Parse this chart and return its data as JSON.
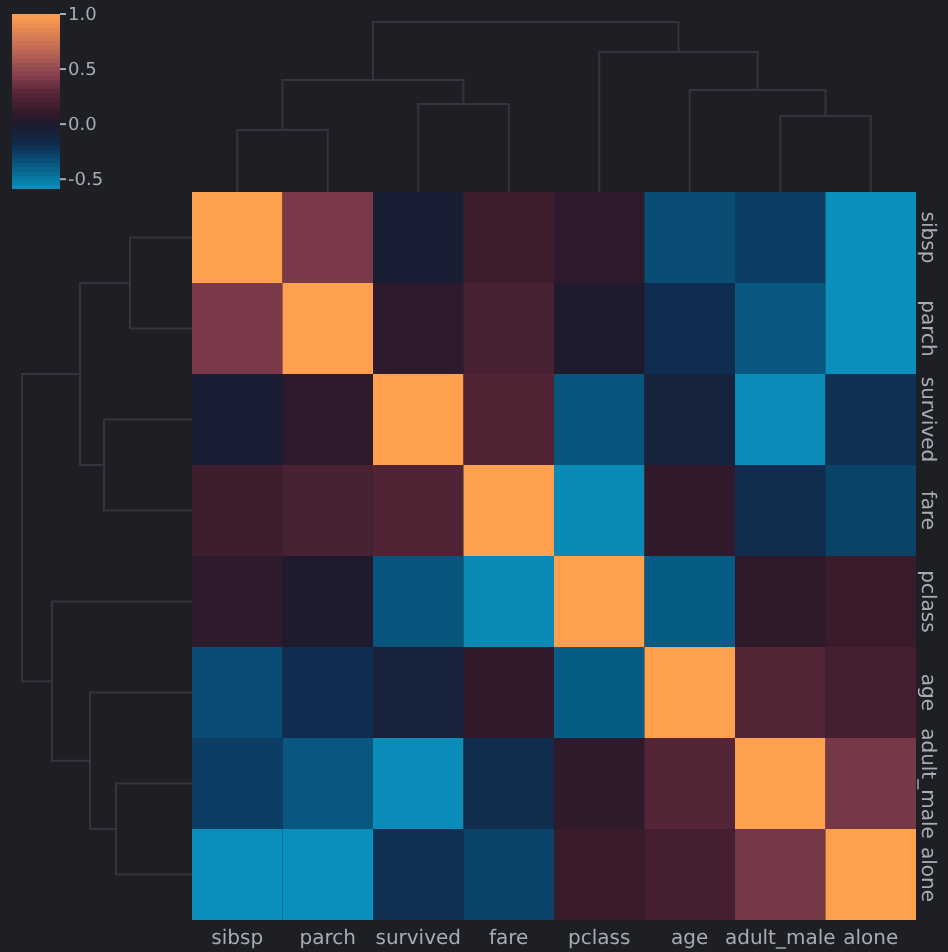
{
  "chart_data": {
    "type": "heatmap",
    "categories": [
      "sibsp",
      "parch",
      "survived",
      "fare",
      "pclass",
      "age",
      "adult_male",
      "alone"
    ],
    "y_categories": [
      "sibsp",
      "parch",
      "survived",
      "fare",
      "pclass",
      "age",
      "adult_male",
      "alone"
    ],
    "cells": [
      [
        1,
        0.41,
        -0.04,
        0.16,
        0.08,
        -0.31,
        -0.25,
        -0.58
      ],
      [
        0.41,
        1,
        0.08,
        0.22,
        0.02,
        -0.19,
        -0.35,
        -0.58
      ],
      [
        -0.04,
        0.08,
        1,
        0.26,
        -0.34,
        -0.08,
        -0.56,
        -0.2
      ],
      [
        0.16,
        0.22,
        0.26,
        1,
        -0.55,
        0.1,
        -0.18,
        -0.27
      ],
      [
        0.08,
        0.02,
        -0.34,
        -0.55,
        1,
        -0.37,
        0.09,
        0.14
      ],
      [
        -0.31,
        -0.19,
        -0.08,
        0.1,
        -0.37,
        1,
        0.28,
        0.2
      ],
      [
        -0.25,
        -0.35,
        -0.56,
        -0.18,
        0.09,
        0.28,
        1,
        0.4
      ],
      [
        -0.58,
        -0.58,
        -0.2,
        -0.27,
        0.14,
        0.2,
        0.4,
        1
      ]
    ],
    "clim": [
      -0.58,
      1
    ],
    "cticks": [
      {
        "value": -0.5,
        "label": "-0.5"
      },
      {
        "value": 0,
        "label": "0.0"
      },
      {
        "value": 0.5,
        "label": "0.5"
      },
      {
        "value": 1,
        "label": "1.0"
      }
    ]
  }
}
